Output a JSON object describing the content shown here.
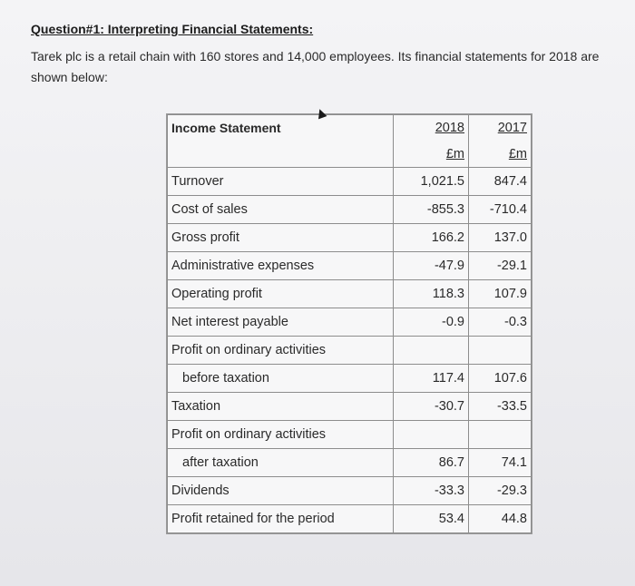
{
  "question": {
    "title": "Question#1: Interpreting Financial Statements:",
    "intro": "Tarek plc is a retail chain with 160 stores and 14,000 employees. Its financial statements for 2018 are shown below:"
  },
  "table": {
    "header": {
      "label": "Income Statement",
      "col1": "2018",
      "col2": "2017",
      "unit1": "£m",
      "unit2": "£m"
    },
    "rows": [
      {
        "label": "Turnover",
        "v2018": "1,021.5",
        "v2017": "847.4"
      },
      {
        "label": "Cost of sales",
        "v2018": "-855.3",
        "v2017": "-710.4"
      },
      {
        "label": "Gross profit",
        "v2018": "166.2",
        "v2017": "137.0"
      },
      {
        "label": "Administrative expenses",
        "v2018": "-47.9",
        "v2017": "-29.1"
      },
      {
        "label": "Operating profit",
        "v2018": "118.3",
        "v2017": "107.9"
      },
      {
        "label": "Net interest payable",
        "v2018": "-0.9",
        "v2017": "-0.3"
      },
      {
        "label": "Profit on ordinary activities",
        "v2018": "",
        "v2017": ""
      },
      {
        "label": "before taxation",
        "v2018": "117.4",
        "v2017": "107.6"
      },
      {
        "label": "Taxation",
        "v2018": "-30.7",
        "v2017": "-33.5"
      },
      {
        "label": "Profit on ordinary activities",
        "v2018": "",
        "v2017": ""
      },
      {
        "label": "after taxation",
        "v2018": "86.7",
        "v2017": "74.1"
      },
      {
        "label": "Dividends",
        "v2018": "-33.3",
        "v2017": "-29.3"
      },
      {
        "label": "Profit retained for the period",
        "v2018": "53.4",
        "v2017": "44.8"
      }
    ]
  }
}
